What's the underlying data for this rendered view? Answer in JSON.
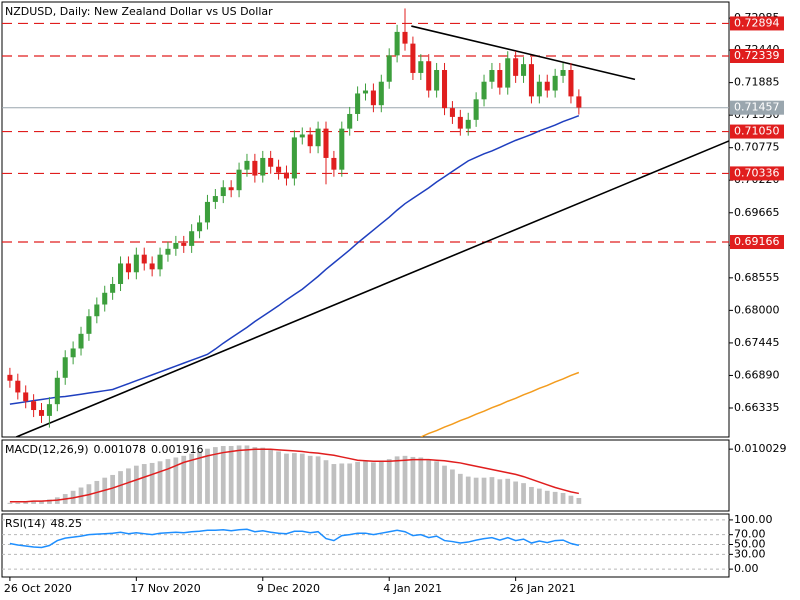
{
  "chart_data": [
    {
      "type": "candlestick",
      "title": "NZDUSD, Daily:  New Zealand Dollar vs US Dollar",
      "categories": [
        "26 Oct 2020",
        null,
        null,
        null,
        null,
        null,
        null,
        null,
        null,
        null,
        null,
        null,
        null,
        null,
        null,
        null,
        "17 Nov 2020",
        null,
        null,
        null,
        null,
        null,
        null,
        null,
        null,
        null,
        null,
        null,
        null,
        null,
        null,
        null,
        "9 Dec 2020",
        null,
        null,
        null,
        null,
        null,
        null,
        null,
        null,
        null,
        null,
        null,
        null,
        null,
        null,
        null,
        "4 Jan 2021",
        null,
        null,
        null,
        null,
        null,
        null,
        null,
        null,
        null,
        null,
        null,
        null,
        null,
        null,
        null,
        "26 Jan 2021",
        null,
        null,
        null,
        null,
        null,
        null,
        null,
        null
      ],
      "open": [
        0.669,
        0.668,
        0.666,
        0.6645,
        0.663,
        0.662,
        0.664,
        0.6685,
        0.672,
        0.6735,
        0.676,
        0.679,
        0.681,
        0.683,
        0.6845,
        0.688,
        0.6865,
        0.6895,
        0.688,
        0.687,
        0.6895,
        0.6905,
        0.6915,
        0.691,
        0.6935,
        0.695,
        0.6985,
        0.6995,
        0.701,
        0.7005,
        0.704,
        0.7055,
        0.703,
        0.706,
        0.7045,
        0.7035,
        0.7025,
        0.7095,
        0.71,
        0.708,
        0.711,
        0.706,
        0.704,
        0.711,
        0.7135,
        0.717,
        0.7175,
        0.715,
        0.719,
        0.7235,
        0.7275,
        0.7255,
        0.7205,
        0.7225,
        0.7175,
        0.721,
        0.7145,
        0.713,
        0.711,
        0.7125,
        0.716,
        0.719,
        0.721,
        0.718,
        0.723,
        0.72,
        0.722,
        0.7165,
        0.719,
        0.7175,
        0.72,
        0.721,
        0.7165
      ],
      "high": [
        0.6702,
        0.6692,
        0.6672,
        0.6657,
        0.6642,
        0.6652,
        0.6697,
        0.6732,
        0.6747,
        0.6772,
        0.6802,
        0.6822,
        0.6842,
        0.6857,
        0.6892,
        0.6892,
        0.6907,
        0.6907,
        0.6892,
        0.6907,
        0.6917,
        0.6927,
        0.6927,
        0.6947,
        0.6962,
        0.6997,
        0.7007,
        0.7022,
        0.7022,
        0.7052,
        0.7067,
        0.7067,
        0.7072,
        0.7072,
        0.7057,
        0.7047,
        0.7107,
        0.7112,
        0.7112,
        0.7122,
        0.7122,
        0.7072,
        0.7122,
        0.7147,
        0.7182,
        0.7187,
        0.7187,
        0.7202,
        0.7247,
        0.7287,
        0.7315,
        0.7267,
        0.7237,
        0.7237,
        0.7222,
        0.7222,
        0.7157,
        0.7142,
        0.7137,
        0.7172,
        0.7202,
        0.7222,
        0.7222,
        0.7242,
        0.7242,
        0.7232,
        0.7232,
        0.7202,
        0.7202,
        0.7212,
        0.7222,
        0.7222,
        0.7177
      ],
      "low": [
        0.6668,
        0.6648,
        0.6633,
        0.6618,
        0.6608,
        0.66,
        0.6628,
        0.6673,
        0.6708,
        0.6723,
        0.6748,
        0.6778,
        0.6798,
        0.6818,
        0.6833,
        0.6853,
        0.6853,
        0.6868,
        0.6858,
        0.6858,
        0.6883,
        0.6893,
        0.6898,
        0.6898,
        0.6923,
        0.6938,
        0.6973,
        0.6983,
        0.6993,
        0.6993,
        0.7028,
        0.7018,
        0.7018,
        0.7033,
        0.7023,
        0.7013,
        0.7013,
        0.7083,
        0.7068,
        0.7068,
        0.7015,
        0.7028,
        0.7028,
        0.7098,
        0.7123,
        0.7158,
        0.7138,
        0.7138,
        0.7178,
        0.7223,
        0.7243,
        0.7193,
        0.7193,
        0.7163,
        0.7163,
        0.7133,
        0.7118,
        0.7098,
        0.7098,
        0.7113,
        0.7148,
        0.7178,
        0.7168,
        0.7168,
        0.7188,
        0.7188,
        0.7153,
        0.7153,
        0.7163,
        0.7163,
        0.7188,
        0.7153,
        0.7134
      ],
      "close": [
        0.668,
        0.666,
        0.6645,
        0.663,
        0.662,
        0.664,
        0.6685,
        0.672,
        0.6735,
        0.676,
        0.679,
        0.681,
        0.683,
        0.6845,
        0.688,
        0.6865,
        0.6895,
        0.688,
        0.687,
        0.6895,
        0.6905,
        0.6915,
        0.691,
        0.6935,
        0.695,
        0.6985,
        0.6995,
        0.701,
        0.7005,
        0.704,
        0.7055,
        0.703,
        0.706,
        0.7045,
        0.7035,
        0.7025,
        0.7095,
        0.71,
        0.708,
        0.711,
        0.706,
        0.704,
        0.711,
        0.7135,
        0.717,
        0.7175,
        0.715,
        0.719,
        0.7235,
        0.7275,
        0.7255,
        0.7205,
        0.7225,
        0.7175,
        0.721,
        0.7145,
        0.713,
        0.711,
        0.7125,
        0.716,
        0.719,
        0.721,
        0.718,
        0.723,
        0.72,
        0.722,
        0.7165,
        0.719,
        0.7175,
        0.72,
        0.721,
        0.7165,
        0.7146
      ],
      "up_color": "#3c9e3c",
      "down_color": "#e01e1e",
      "series": [
        {
          "color": "#1f3fbf",
          "values": [
            0.664,
            0.6642,
            0.6644,
            0.6646,
            0.6648,
            0.665,
            0.6652,
            0.6653,
            0.6655,
            0.6657,
            0.6659,
            0.6661,
            0.6663,
            0.6665,
            0.667,
            0.6675,
            0.668,
            0.6685,
            0.669,
            0.6695,
            0.67,
            0.6705,
            0.671,
            0.6715,
            0.672,
            0.6725,
            0.6734,
            0.6744,
            0.6753,
            0.6762,
            0.6771,
            0.6781,
            0.679,
            0.6799,
            0.6808,
            0.6818,
            0.6827,
            0.6836,
            0.6847,
            0.6858,
            0.687,
            0.6881,
            0.6892,
            0.6903,
            0.6915,
            0.6926,
            0.6937,
            0.6948,
            0.6959,
            0.6971,
            0.6982,
            0.6991,
            0.7,
            0.7009,
            0.7019,
            0.7028,
            0.7037,
            0.7046,
            0.7055,
            0.7061,
            0.7067,
            0.7072,
            0.7078,
            0.7084,
            0.709,
            0.7095,
            0.71,
            0.7106,
            0.7111,
            0.7116,
            0.7122,
            0.7127,
            0.7132
          ]
        },
        {
          "color": "#f39c1e",
          "values": [
            null,
            null,
            null,
            null,
            null,
            null,
            null,
            null,
            null,
            null,
            null,
            null,
            null,
            null,
            null,
            null,
            null,
            null,
            null,
            null,
            null,
            null,
            null,
            null,
            null,
            null,
            null,
            null,
            null,
            null,
            null,
            null,
            null,
            null,
            null,
            null,
            null,
            null,
            null,
            null,
            null,
            null,
            null,
            null,
            null,
            null,
            null,
            null,
            null,
            null,
            null,
            null,
            0.6584,
            0.659,
            0.6595,
            0.6601,
            0.6606,
            0.6612,
            0.6617,
            0.6623,
            0.6628,
            0.6634,
            0.6639,
            0.6645,
            0.665,
            0.6656,
            0.6661,
            0.6667,
            0.6672,
            0.6678,
            0.6683,
            0.6689,
            0.6694
          ]
        }
      ],
      "trendlines": [
        {
          "color": "#000000",
          "x": [
            0.8,
            91
          ],
          "y": [
            0.6584,
            0.7089
          ]
        },
        {
          "color": "#000000",
          "x": [
            50.8,
            79.1
          ],
          "y": [
            0.7285,
            0.7194
          ]
        }
      ],
      "levels": [
        0.72894,
        0.72339,
        {
          "value": 0.7105,
          "label": "0.71050"
        },
        0.70336,
        0.69166
      ],
      "level_color": "#e01e1e",
      "last_price": 0.71457,
      "last_price_color": "#9aa6ae",
      "xlim": [
        -1,
        91
      ],
      "ylim": [
        0.6584,
        0.7326
      ],
      "yticks": [
        0.72985,
        {
          "value": 0.7244,
          "label": "0.72440"
        },
        0.71885,
        {
          "value": 0.7133,
          "label": "0.71330"
        },
        0.70775,
        {
          "value": 0.7022,
          "label": "0.70220"
        },
        0.69665,
        {
          "value": 0.6911,
          "label": "0.69110"
        },
        0.68555,
        {
          "value": 0.68,
          "label": "0.68000"
        },
        0.67445,
        {
          "value": 0.6689,
          "label": "0.66890"
        },
        0.66335
      ]
    },
    {
      "type": "macd",
      "title": "MACD(12,26,9)",
      "series": [
        {
          "color": "#c0c0c0",
          "values": [
            0.0002,
            0.0002,
            0.0003,
            0.0004,
            0.0006,
            0.0008,
            0.0012,
            0.0018,
            0.0024,
            0.003,
            0.0036,
            0.0042,
            0.0048,
            0.0053,
            0.006,
            0.0065,
            0.007,
            0.0073,
            0.0075,
            0.0078,
            0.0082,
            0.0085,
            0.0088,
            0.0092,
            0.0096,
            0.0101,
            0.0104,
            0.0106,
            0.0106,
            0.0107,
            0.0107,
            0.0104,
            0.0103,
            0.01,
            0.0096,
            0.0092,
            0.0093,
            0.0092,
            0.0088,
            0.0087,
            0.008,
            0.0073,
            0.0074,
            0.0074,
            0.0077,
            0.0078,
            0.0076,
            0.0078,
            0.0082,
            0.0087,
            0.0088,
            0.0086,
            0.0085,
            0.008,
            0.0078,
            0.007,
            0.0063,
            0.0055,
            0.005,
            0.0048,
            0.0048,
            0.0049,
            0.0045,
            0.0046,
            0.0041,
            0.0038,
            0.0031,
            0.0028,
            0.0024,
            0.0022,
            0.002,
            0.0015,
            0.001078
          ]
        },
        {
          "color": "#e01e1e",
          "values": [
            0.0004,
            0.0004,
            0.0004,
            0.0005,
            0.0005,
            0.0006,
            0.0007,
            0.0009,
            0.0011,
            0.0014,
            0.0017,
            0.0021,
            0.0025,
            0.0029,
            0.0034,
            0.0039,
            0.0044,
            0.0049,
            0.0054,
            0.0059,
            0.0064,
            0.007,
            0.0076,
            0.008,
            0.0084,
            0.0088,
            0.0091,
            0.0094,
            0.0096,
            0.0098,
            0.0099,
            0.01,
            0.01,
            0.01,
            0.0099,
            0.0098,
            0.0097,
            0.0096,
            0.0094,
            0.0093,
            0.0091,
            0.0089,
            0.0086,
            0.0083,
            0.008,
            0.0079,
            0.0078,
            0.0078,
            0.0078,
            0.0079,
            0.008,
            0.0081,
            0.0081,
            0.0081,
            0.008,
            0.0079,
            0.0077,
            0.0075,
            0.0072,
            0.0069,
            0.0066,
            0.0063,
            0.006,
            0.0057,
            0.0054,
            0.005,
            0.0045,
            0.004,
            0.0035,
            0.003,
            0.0026,
            0.0022,
            0.001916
          ]
        }
      ],
      "ylim": [
        -0.0013,
        0.0117
      ],
      "yticks": [
        0.010029
      ]
    },
    {
      "type": "rsi",
      "title": "RSI(14)",
      "series": [
        {
          "color": "#1e8fff",
          "values": [
            52,
            49,
            47,
            45,
            44,
            48,
            58,
            63,
            65,
            67,
            70,
            71,
            72,
            73,
            75,
            72,
            74,
            72,
            70,
            73,
            74,
            75,
            74,
            76,
            77,
            79,
            79,
            80,
            78,
            80,
            81,
            76,
            78,
            75,
            73,
            72,
            77,
            77,
            74,
            76,
            62,
            58,
            68,
            70,
            73,
            73,
            70,
            73,
            76,
            79,
            76,
            68,
            70,
            64,
            67,
            58,
            56,
            53,
            55,
            59,
            62,
            64,
            59,
            64,
            58,
            61,
            53,
            57,
            54,
            58,
            59,
            52,
            48.25
          ]
        }
      ],
      "ylim": [
        -16,
        112
      ],
      "yticks": [
        {
          "value": 100,
          "label": "100.00"
        },
        {
          "value": 70,
          "label": "70.00"
        },
        {
          "value": 50,
          "label": "50.00"
        },
        {
          "value": 30,
          "label": "30.00"
        },
        {
          "value": 0,
          "label": "0.00"
        }
      ],
      "grid": true
    }
  ]
}
